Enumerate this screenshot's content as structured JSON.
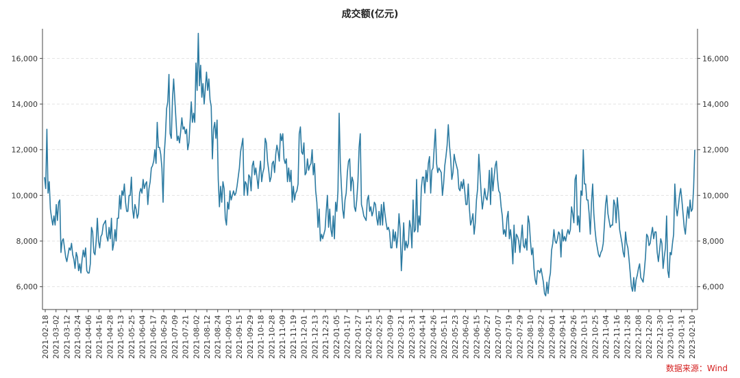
{
  "chart_data": {
    "type": "line",
    "title": "成交额(亿元)",
    "xlabel": "",
    "ylabel": "",
    "ylim": [
      5000,
      17300
    ],
    "yticks": [
      6000,
      8000,
      10000,
      12000,
      14000,
      16000
    ],
    "ytick_labels": [
      "6,000",
      "8,000",
      "10,000",
      "12,000",
      "14,000",
      "16,000"
    ],
    "grid": true,
    "x_tick_labels": [
      "2021-02-18",
      "2021-03-02",
      "2021-03-12",
      "2021-03-24",
      "2021-04-06",
      "2021-04-16",
      "2021-04-28",
      "2021-05-13",
      "2021-05-25",
      "2021-06-04",
      "2021-06-17",
      "2021-06-29",
      "2021-07-09",
      "2021-07-21",
      "2021-08-02",
      "2021-08-12",
      "2021-08-24",
      "2021-09-03",
      "2021-09-15",
      "2021-09-29",
      "2021-10-18",
      "2021-10-28",
      "2021-11-09",
      "2021-11-19",
      "2021-12-01",
      "2021-12-13",
      "2021-12-23",
      "2022-01-05",
      "2022-01-17",
      "2022-01-27",
      "2022-02-15",
      "2022-02-25",
      "2022-03-09",
      "2022-03-21",
      "2022-03-31",
      "2022-04-14",
      "2022-04-26",
      "2022-05-11",
      "2022-05-23",
      "2022-06-02",
      "2022-06-15",
      "2022-06-27",
      "2022-07-07",
      "2022-07-19",
      "2022-07-29",
      "2022-08-10",
      "2022-08-22",
      "2022-09-01",
      "2022-09-14",
      "2022-09-26",
      "2022-10-13",
      "2022-10-25",
      "2022-11-04",
      "2022-11-16",
      "2022-11-28",
      "2022-12-08",
      "2022-12-20",
      "2022-12-30",
      "2023-01-10",
      "2023-01-31",
      "2023-02-10"
    ],
    "series": [
      {
        "color": "#2b7aa1",
        "values": [
          10800,
          10300,
          12900,
          10100,
          10600,
          9400,
          9000,
          8700,
          9100,
          8700,
          9600,
          8900,
          9700,
          9800,
          7500,
          8000,
          8100,
          7700,
          7300,
          7100,
          7400,
          7700,
          7600,
          7900,
          7400,
          7200,
          6800,
          7500,
          7300,
          6700,
          7000,
          6600,
          7200,
          7600,
          7300,
          7700,
          6700,
          6600,
          6600,
          7000,
          8600,
          8400,
          7500,
          7400,
          8000,
          9000,
          8000,
          7700,
          8200,
          8300,
          8700,
          8800,
          8900,
          8200,
          8000,
          8600,
          8100,
          9000,
          7600,
          7900,
          8500,
          8000,
          9000,
          9000,
          10000,
          9400,
          10200,
          10000,
          10500,
          9700,
          9300,
          9300,
          10000,
          10000,
          10800,
          9400,
          9000,
          9600,
          9400,
          9000,
          9200,
          10100,
          10300,
          10100,
          10700,
          10300,
          10500,
          10600,
          9600,
          10300,
          10600,
          11200,
          11300,
          11500,
          12000,
          11400,
          13200,
          12100,
          12100,
          11800,
          11200,
          9700,
          11800,
          12600,
          13800,
          14100,
          15300,
          12700,
          12500,
          14200,
          15100,
          14200,
          13300,
          12400,
          12600,
          12300,
          12800,
          13400,
          12900,
          13000,
          12700,
          12900,
          12000,
          12300,
          13200,
          14100,
          13200,
          13600,
          13200,
          15800,
          14600,
          17100,
          14800,
          15700,
          14300,
          14900,
          14000,
          14700,
          15400,
          14600,
          15100,
          14200,
          13900,
          11600,
          12900,
          13200,
          12500,
          13300,
          10700,
          9500,
          10400,
          9700,
          10600,
          10300,
          9000,
          8700,
          9700,
          9400,
          10200,
          9800,
          10000,
          10200,
          10000,
          10100,
          10400,
          10800,
          11200,
          11900,
          12200,
          12500,
          10000,
          10600,
          10500,
          10000,
          10900,
          10800,
          10200,
          11300,
          11500,
          10900,
          11200,
          10800,
          10300,
          11000,
          11500,
          10600,
          11000,
          11200,
          12500,
          12300,
          11500,
          11100,
          10600,
          10800,
          11400,
          11500,
          11000,
          11800,
          12200,
          11900,
          11500,
          12700,
          12400,
          12700,
          11600,
          11400,
          11600,
          10600,
          11200,
          10600,
          11100,
          9700,
          10400,
          9800,
          10100,
          10200,
          10500,
          12700,
          13000,
          11900,
          11800,
          12300,
          10900,
          11000,
          11600,
          11100,
          11300,
          11400,
          12000,
          10900,
          11400,
          10200,
          9700,
          8600,
          9400,
          8000,
          8300,
          8100,
          8300,
          8500,
          9300,
          10000,
          8600,
          9400,
          8500,
          8200,
          9100,
          8100,
          9700,
          9300,
          10200,
          13600,
          11400,
          10300,
          9400,
          9000,
          9800,
          10100,
          11000,
          11500,
          11600,
          10200,
          10800,
          10600,
          9500,
          9300,
          9800,
          10600,
          12100,
          12700,
          9600,
          9400,
          9100,
          9000,
          8900,
          9800,
          10000,
          9300,
          9500,
          9100,
          9300,
          9700,
          9600,
          9000,
          8700,
          9300,
          8700,
          9600,
          8700,
          9700,
          9200,
          8800,
          8500,
          8600,
          8400,
          7700,
          7700,
          8500,
          8000,
          8400,
          7700,
          8200,
          9200,
          8500,
          6700,
          7700,
          8800,
          7600,
          8000,
          7700,
          7900,
          8900,
          8600,
          7700,
          9800,
          8400,
          8500,
          10700,
          8400,
          9100,
          8700,
          10300,
          10800,
          10800,
          10100,
          11100,
          10600,
          11400,
          11700,
          10100,
          11100,
          11200,
          12100,
          12900,
          11400,
          11000,
          11200,
          11100,
          11000,
          10000,
          10500,
          11300,
          11700,
          12200,
          13100,
          12200,
          11600,
          10700,
          11000,
          11800,
          11500,
          11300,
          11100,
          10300,
          10200,
          10600,
          10300,
          10700,
          10200,
          9600,
          9600,
          10500,
          9400,
          8700,
          8900,
          9200,
          8300,
          8800,
          9800,
          10300,
          11800,
          11000,
          10100,
          9400,
          9800,
          10300,
          9900,
          9800,
          10200,
          11100,
          9600,
          11200,
          10200,
          10800,
          11300,
          11500,
          10700,
          10200,
          10100,
          9500,
          9100,
          8300,
          8500,
          8200,
          9000,
          9300,
          8100,
          8500,
          8000,
          7000,
          8700,
          7500,
          8300,
          8200,
          8000,
          7500,
          8100,
          8700,
          7800,
          7700,
          8100,
          7600,
          9100,
          8800,
          8000,
          7400,
          7700,
          6800,
          6300,
          6100,
          6700,
          6700,
          6600,
          6800,
          6500,
          6200,
          5700,
          5600,
          6200,
          5700,
          6300,
          6600,
          7600,
          7900,
          8500,
          8000,
          7900,
          8100,
          8400,
          8300,
          7300,
          8500,
          8000,
          8200,
          8000,
          8300,
          8500,
          8300,
          8500,
          9500,
          9200,
          8800,
          10700,
          10900,
          8700,
          9100,
          8400,
          10200,
          10000,
          12000,
          10500,
          10500,
          9800,
          9800,
          9200,
          8300,
          9700,
          10500,
          9200,
          8500,
          8000,
          7700,
          7400,
          7300,
          7500,
          7600,
          7900,
          8700,
          9600,
          10000,
          9200,
          8900,
          8600,
          8700,
          8700,
          9800,
          9600,
          8800,
          9900,
          9300,
          8500,
          8200,
          7900,
          7500,
          7300,
          8400,
          7900,
          7700,
          7200,
          6600,
          6000,
          5800,
          6400,
          5800,
          6300,
          6500,
          6800,
          7000,
          6400,
          6300,
          6200,
          6700,
          7300,
          8300,
          8200,
          7800,
          7900,
          8300,
          8600,
          8100,
          8400,
          8400,
          7500,
          7100,
          7600,
          8100,
          7900,
          6800,
          7300,
          7700,
          9100,
          6700,
          6400,
          7500,
          7400,
          7900,
          8300,
          10500,
          9500,
          9100,
          9500,
          10000,
          10300,
          9800,
          9200,
          8600,
          8300,
          9000,
          9500,
          9000,
          9800,
          9300,
          9400,
          10300,
          12000
        ]
      }
    ],
    "annotations": [
      "数据来源：Wind"
    ]
  }
}
